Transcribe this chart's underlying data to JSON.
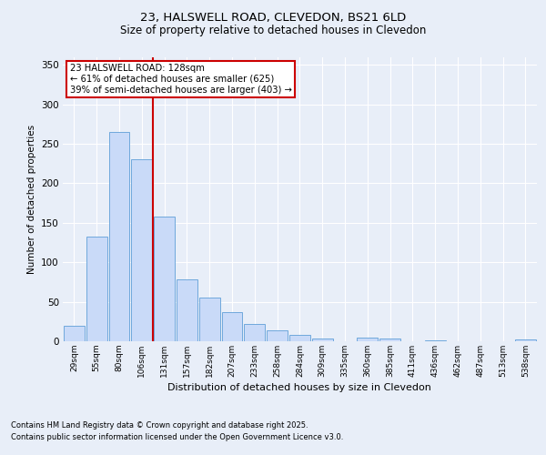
{
  "title_line1": "23, HALSWELL ROAD, CLEVEDON, BS21 6LD",
  "title_line2": "Size of property relative to detached houses in Clevedon",
  "xlabel": "Distribution of detached houses by size in Clevedon",
  "ylabel": "Number of detached properties",
  "categories": [
    "29sqm",
    "55sqm",
    "80sqm",
    "106sqm",
    "131sqm",
    "157sqm",
    "182sqm",
    "207sqm",
    "233sqm",
    "258sqm",
    "284sqm",
    "309sqm",
    "335sqm",
    "360sqm",
    "385sqm",
    "411sqm",
    "436sqm",
    "462sqm",
    "487sqm",
    "513sqm",
    "538sqm"
  ],
  "values": [
    20,
    133,
    265,
    230,
    158,
    78,
    55,
    37,
    22,
    14,
    8,
    4,
    0,
    5,
    3,
    0,
    1,
    0,
    0,
    0,
    2
  ],
  "bar_color": "#c9daf8",
  "bar_edge_color": "#6fa8dc",
  "vline_color": "#cc0000",
  "vline_index": 3.5,
  "annotation_text": "23 HALSWELL ROAD: 128sqm\n← 61% of detached houses are smaller (625)\n39% of semi-detached houses are larger (403) →",
  "annotation_box_color": "#cc0000",
  "ylim": [
    0,
    360
  ],
  "yticks": [
    0,
    50,
    100,
    150,
    200,
    250,
    300,
    350
  ],
  "bg_color": "#e8eef8",
  "plot_bg_color": "#e8eef8",
  "grid_color": "#ffffff",
  "footnote_line1": "Contains HM Land Registry data © Crown copyright and database right 2025.",
  "footnote_line2": "Contains public sector information licensed under the Open Government Licence v3.0."
}
